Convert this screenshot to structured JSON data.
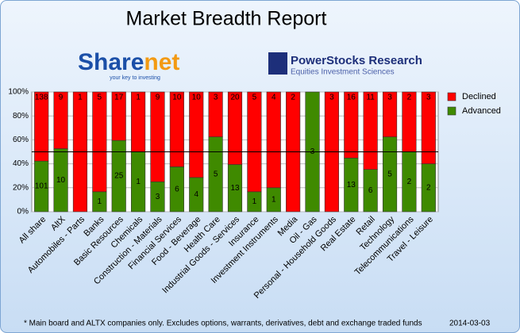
{
  "chart_data": {
    "type": "bar",
    "stacking": "percent",
    "title": "Market Breadth Report",
    "logos": {
      "sharenet_a": "Share",
      "sharenet_b": "net",
      "sharenet_tagline": "your key to investing",
      "powerstocks": "PowerStocks  Research",
      "powerstocks_tagline": "Equities Investment Sciences"
    },
    "footnote": "* Main board and ALTX companies only. Excludes options, warrants, derivatives, debt and exchange traded funds",
    "date": "2014-03-03",
    "categories": [
      "All share",
      "AltX",
      "Automobiles - Parts",
      "Banks",
      "Basic Resources",
      "Chemicals",
      "Construction - Materials",
      "Financial Services",
      "Food - Beverage",
      "Health Care",
      "Industrial Goods - Services",
      "Insurance",
      "Investment Instruments",
      "Media",
      "Oil - Gas",
      "Personal - Household Goods",
      "Real Estate",
      "Retail",
      "Technology",
      "Telecommunications",
      "Travel - Leisure"
    ],
    "series": [
      {
        "name": "Advanced",
        "color": "#3f8a00",
        "values": [
          101,
          10,
          null,
          1,
          25,
          1,
          3,
          6,
          4,
          5,
          13,
          1,
          1,
          null,
          3,
          null,
          13,
          6,
          5,
          2,
          2
        ]
      },
      {
        "name": "Declined",
        "color": "#ff0000",
        "values": [
          138,
          9,
          1,
          5,
          17,
          1,
          9,
          10,
          10,
          3,
          20,
          5,
          4,
          2,
          null,
          3,
          16,
          11,
          3,
          2,
          3
        ]
      }
    ],
    "ylim": [
      0,
      100
    ],
    "yticks": [
      {
        "value": 0,
        "label": "0%"
      },
      {
        "value": 20,
        "label": "20%"
      },
      {
        "value": 40,
        "label": "40%"
      },
      {
        "value": 60,
        "label": "60%"
      },
      {
        "value": 80,
        "label": "80%"
      },
      {
        "value": 100,
        "label": "100%"
      }
    ],
    "reference_line": 50,
    "legend": "right"
  }
}
